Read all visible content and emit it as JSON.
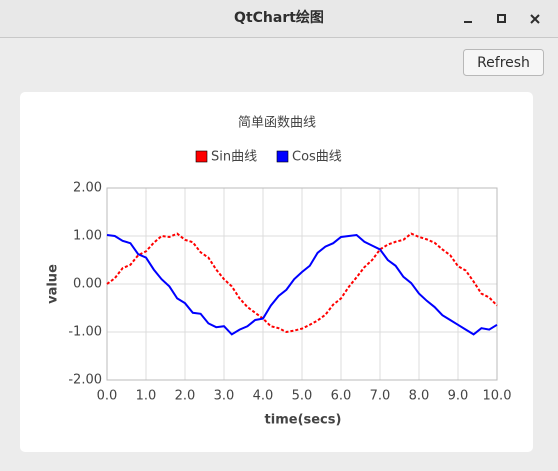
{
  "window": {
    "title": "QtChart绘图"
  },
  "button": {
    "label": "Refresh"
  },
  "chart_data": {
    "type": "line",
    "title": "简单函数曲线",
    "x_label": "time(secs)",
    "y_label": "value",
    "x": [
      0,
      0.2,
      0.4,
      0.6,
      0.8,
      1,
      1.2,
      1.4,
      1.6,
      1.8,
      2,
      2.2,
      2.4,
      2.6,
      2.8,
      3,
      3.2,
      3.4,
      3.6,
      3.8,
      4,
      4.2,
      4.4,
      4.6,
      4.8,
      5,
      5.2,
      5.4,
      5.6,
      5.8,
      6,
      6.2,
      6.4,
      6.6,
      6.8,
      7,
      7.2,
      7.4,
      7.6,
      7.8,
      8,
      8.2,
      8.4,
      8.6,
      8.8,
      9,
      9.2,
      9.4,
      9.6,
      9.8,
      10
    ],
    "series": [
      {
        "name": "Sin曲线",
        "color": "#ff0000",
        "line_style": "dashed",
        "values": [
          0.0,
          0.12,
          0.33,
          0.4,
          0.6,
          0.68,
          0.86,
          1.0,
          0.98,
          1.05,
          0.92,
          0.87,
          0.66,
          0.55,
          0.3,
          0.1,
          -0.05,
          -0.3,
          -0.48,
          -0.6,
          -0.72,
          -0.88,
          -0.92,
          -1.0,
          -0.97,
          -0.93,
          -0.85,
          -0.76,
          -0.64,
          -0.43,
          -0.3,
          -0.06,
          0.14,
          0.35,
          0.5,
          0.72,
          0.82,
          0.88,
          0.92,
          1.05,
          0.98,
          0.93,
          0.86,
          0.72,
          0.6,
          0.37,
          0.28,
          0.05,
          -0.2,
          -0.28,
          -0.45
        ]
      },
      {
        "name": "Cos曲线",
        "color": "#0000ff",
        "line_style": "solid",
        "values": [
          1.02,
          1.0,
          0.9,
          0.85,
          0.62,
          0.55,
          0.3,
          0.1,
          -0.05,
          -0.3,
          -0.4,
          -0.6,
          -0.62,
          -0.82,
          -0.9,
          -0.88,
          -1.05,
          -0.95,
          -0.88,
          -0.75,
          -0.72,
          -0.45,
          -0.25,
          -0.12,
          0.1,
          0.25,
          0.38,
          0.65,
          0.78,
          0.85,
          0.98,
          1.0,
          1.02,
          0.88,
          0.8,
          0.72,
          0.5,
          0.38,
          0.15,
          0.02,
          -0.2,
          -0.35,
          -0.48,
          -0.65,
          -0.75,
          -0.85,
          -0.95,
          -1.05,
          -0.92,
          -0.95,
          -0.85
        ]
      }
    ],
    "xlim": [
      0,
      10
    ],
    "ylim": [
      -2,
      2
    ],
    "xticks": [
      {
        "value": 0,
        "label": "0.0"
      },
      {
        "value": 1,
        "label": "1.0"
      },
      {
        "value": 2,
        "label": "2.0"
      },
      {
        "value": 3,
        "label": "3.0"
      },
      {
        "value": 4,
        "label": "4.0"
      },
      {
        "value": 5,
        "label": "5.0"
      },
      {
        "value": 6,
        "label": "6.0"
      },
      {
        "value": 7,
        "label": "7.0"
      },
      {
        "value": 8,
        "label": "8.0"
      },
      {
        "value": 9,
        "label": "9.0"
      },
      {
        "value": 10,
        "label": "10.0"
      }
    ],
    "yticks": [
      {
        "value": 2,
        "label": "2.00"
      },
      {
        "value": 1,
        "label": "1.00"
      },
      {
        "value": 0,
        "label": "0.00"
      },
      {
        "value": -1,
        "label": "-1.00"
      },
      {
        "value": -2,
        "label": "-2.00"
      }
    ],
    "grid": true,
    "legend": "top"
  }
}
